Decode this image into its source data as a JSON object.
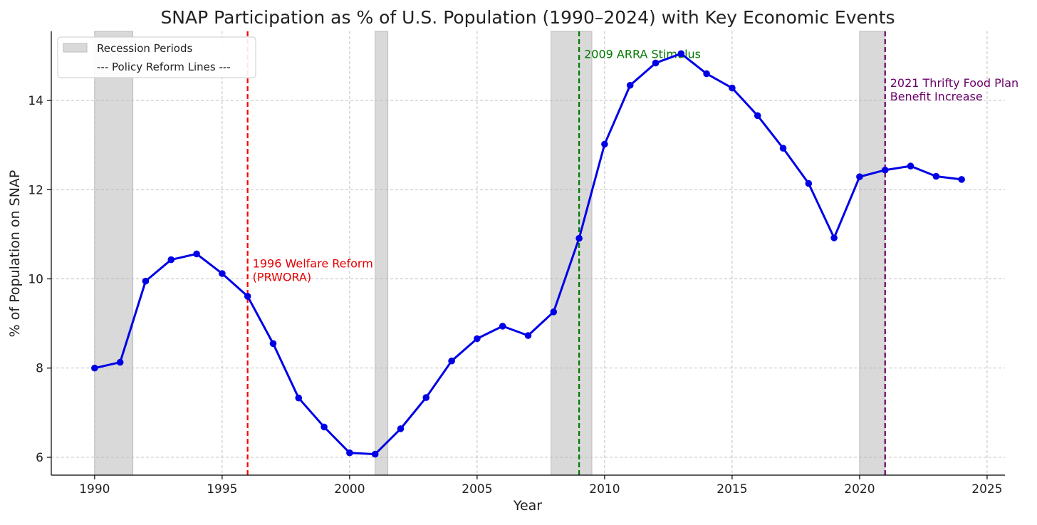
{
  "chart_data": {
    "type": "line",
    "title": "SNAP Participation as % of U.S. Population (1990–2024) with Key Economic Events",
    "xlabel": "Year",
    "ylabel": "% of Population on SNAP",
    "xlim": [
      1988.3,
      2025.7
    ],
    "ylim": [
      5.6,
      15.55
    ],
    "xticks": [
      1990,
      1995,
      2000,
      2005,
      2010,
      2015,
      2020,
      2025
    ],
    "yticks": [
      6,
      8,
      10,
      12,
      14
    ],
    "grid": true,
    "legend_position": "top-left",
    "legend": [
      "Recession Periods",
      "--- Policy Reform Lines ---"
    ],
    "series": [
      {
        "color": "#0000e6",
        "x": [
          1990,
          1991,
          1992,
          1993,
          1994,
          1995,
          1996,
          1997,
          1998,
          1999,
          2000,
          2001,
          2002,
          2003,
          2004,
          2005,
          2006,
          2007,
          2008,
          2009,
          2010,
          2011,
          2012,
          2013,
          2014,
          2015,
          2016,
          2017,
          2018,
          2019,
          2020,
          2021,
          2022,
          2023,
          2024
        ],
        "values": [
          8.0,
          8.13,
          9.95,
          10.43,
          10.56,
          10.12,
          9.61,
          8.55,
          7.33,
          6.68,
          6.1,
          6.07,
          6.64,
          7.34,
          8.16,
          8.66,
          8.94,
          8.73,
          9.26,
          10.91,
          13.02,
          14.34,
          14.84,
          15.05,
          14.6,
          14.28,
          13.66,
          12.93,
          12.14,
          10.92,
          12.29,
          12.44,
          12.53,
          12.3,
          12.23
        ]
      }
    ],
    "recessions": [
      {
        "start": 1990.0,
        "end": 1991.5
      },
      {
        "start": 2001.0,
        "end": 2001.5
      },
      {
        "start": 2007.9,
        "end": 2009.5
      },
      {
        "start": 2020.0,
        "end": 2021.0
      }
    ],
    "policy_lines": [
      {
        "x": 1996,
        "label_lines": [
          "1996 Welfare Reform",
          "(PRWORA)"
        ],
        "color": "#ff0000",
        "text_color": "#e60000",
        "label_y": 10.35
      },
      {
        "x": 2009,
        "label_lines": [
          "2009 ARRA Stimulus"
        ],
        "color": "#007a00",
        "text_color": "#007a00",
        "label_y": 15.05
      },
      {
        "x": 2021,
        "label_lines": [
          "2021 Thrifty Food Plan",
          "Benefit Increase"
        ],
        "color": "#6a006a",
        "text_color": "#6a006a",
        "label_y": 14.4
      }
    ]
  }
}
